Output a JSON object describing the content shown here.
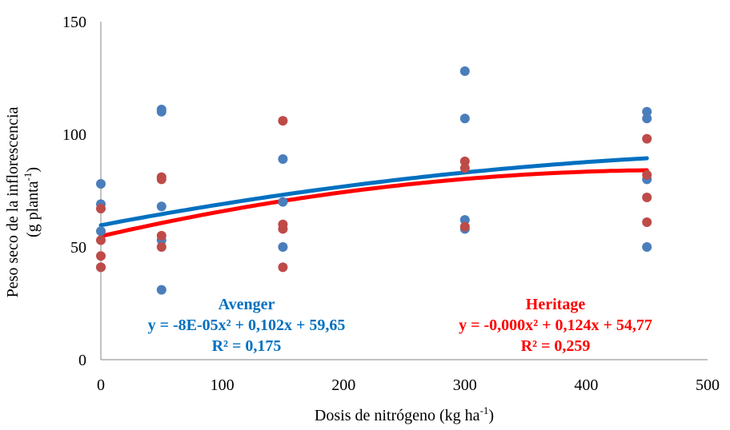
{
  "chart_data": {
    "type": "scatter",
    "xlabel": "Dosis de nitrógeno (kg ha",
    "xlabel_sup": "-1",
    "xlabel_tail": ")",
    "ylabel_line1": "Peso seco de la inflorescencia",
    "ylabel_line2": "(g planta",
    "ylabel_line2_sup": "-1",
    "ylabel_line2_tail": ")",
    "xlim": [
      0,
      500
    ],
    "ylim": [
      0,
      150
    ],
    "x_ticks": [
      "0",
      "100",
      "200",
      "300",
      "400",
      "500"
    ],
    "y_ticks": [
      "0",
      "50",
      "100",
      "150"
    ],
    "grid": false,
    "series": [
      {
        "name": "Avenger",
        "color": "#4A7EBB",
        "trend_color": "#0070C0",
        "points": [
          [
            0,
            78
          ],
          [
            0,
            69
          ],
          [
            0,
            57
          ],
          [
            0,
            41
          ],
          [
            50,
            111
          ],
          [
            50,
            110
          ],
          [
            50,
            68
          ],
          [
            50,
            53
          ],
          [
            50,
            31
          ],
          [
            150,
            89
          ],
          [
            150,
            70
          ],
          [
            150,
            50
          ],
          [
            300,
            128
          ],
          [
            300,
            107
          ],
          [
            300,
            62
          ],
          [
            300,
            58
          ],
          [
            450,
            110
          ],
          [
            450,
            107
          ],
          [
            450,
            80
          ],
          [
            450,
            50
          ]
        ],
        "trend": {
          "a": -8e-05,
          "b": 0.102,
          "c": 59.65,
          "x_range": [
            0,
            450
          ]
        },
        "equation": "y = -8E-05x² + 0,102x + 59,65",
        "r2": "R² = 0,175"
      },
      {
        "name": "Heritage",
        "color": "#BE4B48",
        "trend_color": "#FF0000",
        "points": [
          [
            0,
            67
          ],
          [
            0,
            53
          ],
          [
            0,
            46
          ],
          [
            0,
            41
          ],
          [
            50,
            81
          ],
          [
            50,
            80
          ],
          [
            50,
            55
          ],
          [
            50,
            50
          ],
          [
            150,
            106
          ],
          [
            150,
            60
          ],
          [
            150,
            58
          ],
          [
            150,
            41
          ],
          [
            300,
            88
          ],
          [
            300,
            85
          ],
          [
            300,
            59
          ],
          [
            450,
            98
          ],
          [
            450,
            82
          ],
          [
            450,
            72
          ],
          [
            450,
            61
          ]
        ],
        "trend": {
          "a": -0.000131,
          "b": 0.124,
          "c": 54.77,
          "x_range": [
            0,
            450
          ]
        },
        "equation": "y = -0,000x² + 0,124x + 54,77",
        "r2": "R² = 0,259"
      }
    ]
  }
}
